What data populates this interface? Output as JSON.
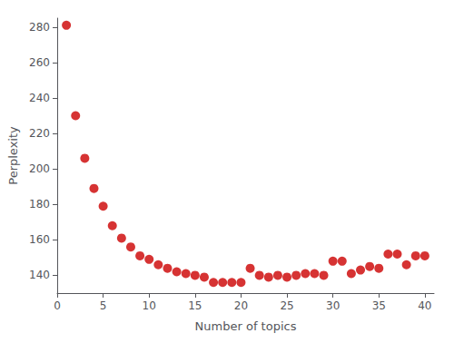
{
  "chart_data": {
    "type": "scatter",
    "x": [
      1,
      2,
      3,
      4,
      5,
      6,
      7,
      8,
      9,
      10,
      11,
      12,
      13,
      14,
      15,
      16,
      17,
      18,
      19,
      20,
      21,
      22,
      23,
      24,
      25,
      26,
      27,
      28,
      29,
      30,
      31,
      32,
      33,
      34,
      35,
      36,
      37,
      38,
      39,
      40
    ],
    "values": [
      281,
      230,
      206,
      189,
      179,
      168,
      161,
      156,
      151,
      149,
      146,
      144,
      142,
      141,
      140,
      139,
      136,
      136,
      136,
      136,
      144,
      140,
      139,
      140,
      139,
      140,
      141,
      141,
      140,
      148,
      148,
      141,
      143,
      145,
      144,
      152,
      152,
      146,
      151,
      151
    ],
    "xlabel": "Number of topics",
    "ylabel": "Perplexity",
    "xlim": [
      0,
      41
    ],
    "ylim": [
      130,
      285
    ],
    "xticks": [
      0,
      5,
      10,
      15,
      20,
      25,
      30,
      35,
      40
    ],
    "yticks": [
      140,
      160,
      180,
      200,
      220,
      240,
      260,
      280
    ],
    "color": "#cc0000",
    "marker": "circle",
    "grid": false
  }
}
